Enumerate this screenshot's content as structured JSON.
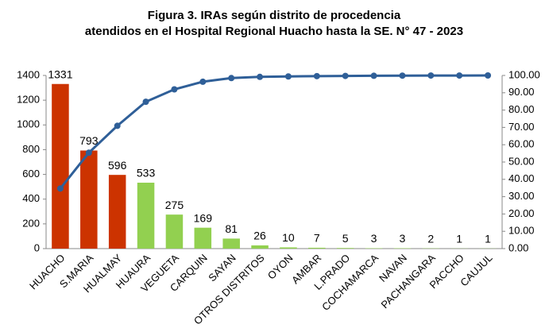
{
  "chart_data": {
    "type": "bar",
    "title": [
      "Figura 3. IRAs  según distrito de procedencia",
      "atendidos en el Hospital Regional Huacho hasta la SE. N° 47 - 2023"
    ],
    "categories": [
      "HUACHO",
      "S.MARIA",
      "HUALMAY",
      "HUAURA",
      "VEGUETA",
      "CARQUIN",
      "SAYAN",
      "OTROS DISTRITOS",
      "OYON",
      "AMBAR",
      "L.PRADO",
      "COCHAMARCA",
      "NAVAN",
      "PACHANGARA",
      "PACCHO",
      "CAUJUL"
    ],
    "series": [
      {
        "type": "bar",
        "values": [
          1331,
          793,
          596,
          533,
          275,
          169,
          81,
          26,
          10,
          7,
          5,
          3,
          3,
          2,
          1,
          1
        ],
        "colors": [
          "#cc3300",
          "#cc3300",
          "#cc3300",
          "#92d050",
          "#92d050",
          "#92d050",
          "#92d050",
          "#92d050",
          "#92d050",
          "#92d050",
          "#92d050",
          "#92d050",
          "#92d050",
          "#92d050",
          "#92d050",
          "#92d050"
        ]
      },
      {
        "type": "line",
        "axis": "y2",
        "color": "#2f5f98",
        "values": [
          34.7,
          55.37,
          70.91,
          84.8,
          91.97,
          96.38,
          98.49,
          99.17,
          99.43,
          99.61,
          99.74,
          99.82,
          99.9,
          99.95,
          99.97,
          100.0
        ]
      }
    ],
    "ylim": [
      0,
      1400
    ],
    "yticks": [
      0,
      200,
      400,
      600,
      800,
      1000,
      1200,
      1400
    ],
    "y2lim": [
      0,
      100
    ],
    "y2ticks": [
      {
        "value": 0,
        "label": "0.00"
      },
      {
        "value": 10,
        "label": "10.00"
      },
      {
        "value": 20,
        "label": "20.00"
      },
      {
        "value": 30,
        "label": "30.00"
      },
      {
        "value": 40,
        "label": "40.00"
      },
      {
        "value": 50,
        "label": "50.00"
      },
      {
        "value": 60,
        "label": "60.00"
      },
      {
        "value": 70,
        "label": "70.00"
      },
      {
        "value": 80,
        "label": "80.00"
      },
      {
        "value": 90,
        "label": "90.00"
      },
      {
        "value": 100,
        "label": "100.00"
      }
    ],
    "grid": false
  }
}
